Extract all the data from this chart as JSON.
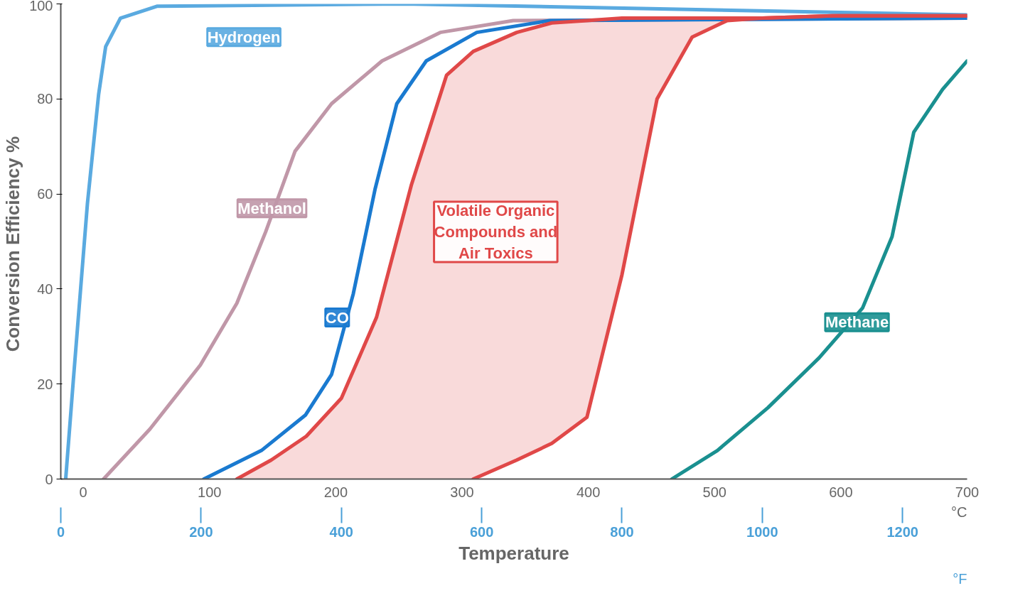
{
  "chart_data": {
    "type": "line",
    "xlabel": "Temperature",
    "ylabel": "Conversion Efficiency  %",
    "x2label": "°C",
    "annotations": [
      "°F"
    ],
    "xlim": [
      0,
      1292
    ],
    "xticks": [
      0,
      200,
      400,
      600,
      800,
      1000,
      1200
    ],
    "x2lim": [
      -17.8,
      700
    ],
    "x2ticks": [
      0,
      100,
      200,
      300,
      400,
      500,
      600,
      700
    ],
    "ylim": [
      0,
      100
    ],
    "yticks": [
      0,
      20,
      40,
      60,
      80,
      100
    ],
    "marker": "none",
    "line_style": "solid",
    "series": [
      {
        "name": "Hydrogen",
        "color": "#5aaae0",
        "x": [
          7,
          18,
          38,
          54,
          64,
          85,
          137,
          490,
          1292
        ],
        "values": [
          0,
          21,
          58,
          81,
          91,
          97,
          99.5,
          100,
          97.7
        ]
      },
      {
        "name": "Methanol",
        "color": "#c097a8",
        "x": [
          61,
          127,
          199,
          251,
          292,
          334,
          386,
          458,
          541,
          645,
          1292
        ],
        "values": [
          0,
          10.5,
          24,
          37,
          52,
          69,
          79,
          88,
          94,
          96.5,
          97
        ]
      },
      {
        "name": "CO",
        "color": "#1a7ad0",
        "x": [
          204,
          286,
          349,
          386,
          417,
          448,
          479,
          521,
          593,
          697,
          1292
        ],
        "values": [
          0,
          6,
          13.5,
          22,
          39,
          61,
          79,
          88,
          94,
          96.5,
          97
        ]
      },
      {
        "name": "Volatile Organic Compounds and Air Toxics",
        "color": "#e04848",
        "x": [
          251,
          300,
          350,
          400,
          450,
          500,
          550,
          588,
          650,
          700,
          750,
          800,
          850,
          900,
          950,
          1000,
          1100,
          1200,
          1292
        ],
        "values": [
          0,
          4,
          9,
          17,
          34,
          62,
          85,
          90,
          94,
          96,
          96.5,
          97,
          97,
          97,
          97,
          97,
          97.5,
          97.5,
          97.5
        ],
        "lower": [
          0,
          0,
          0,
          0,
          0,
          0,
          0,
          0,
          4,
          7.5,
          13,
          43,
          80,
          93,
          96.5,
          97,
          97.5,
          97.5,
          97.5
        ],
        "upper": [
          0,
          4,
          9,
          17,
          34,
          62,
          85,
          90,
          94,
          96,
          96.5,
          97,
          97,
          97,
          97,
          97,
          97.5,
          97.5,
          97.5
        ]
      },
      {
        "color": "#e04848",
        "x": [
          588,
          650,
          700,
          750,
          800,
          850,
          900,
          950,
          1000,
          1100,
          1200,
          1292
        ],
        "values": [
          0,
          4,
          7.5,
          13,
          43,
          80,
          93,
          96.5,
          97,
          97.5,
          97.5,
          97.5
        ]
      },
      {
        "name": "Methane",
        "color": "#1a9090",
        "x": [
          871,
          936,
          1008,
          1081,
          1143,
          1185,
          1216,
          1257,
          1292
        ],
        "values": [
          0,
          6,
          15,
          25.5,
          36,
          51,
          73,
          82,
          88
        ]
      }
    ]
  }
}
